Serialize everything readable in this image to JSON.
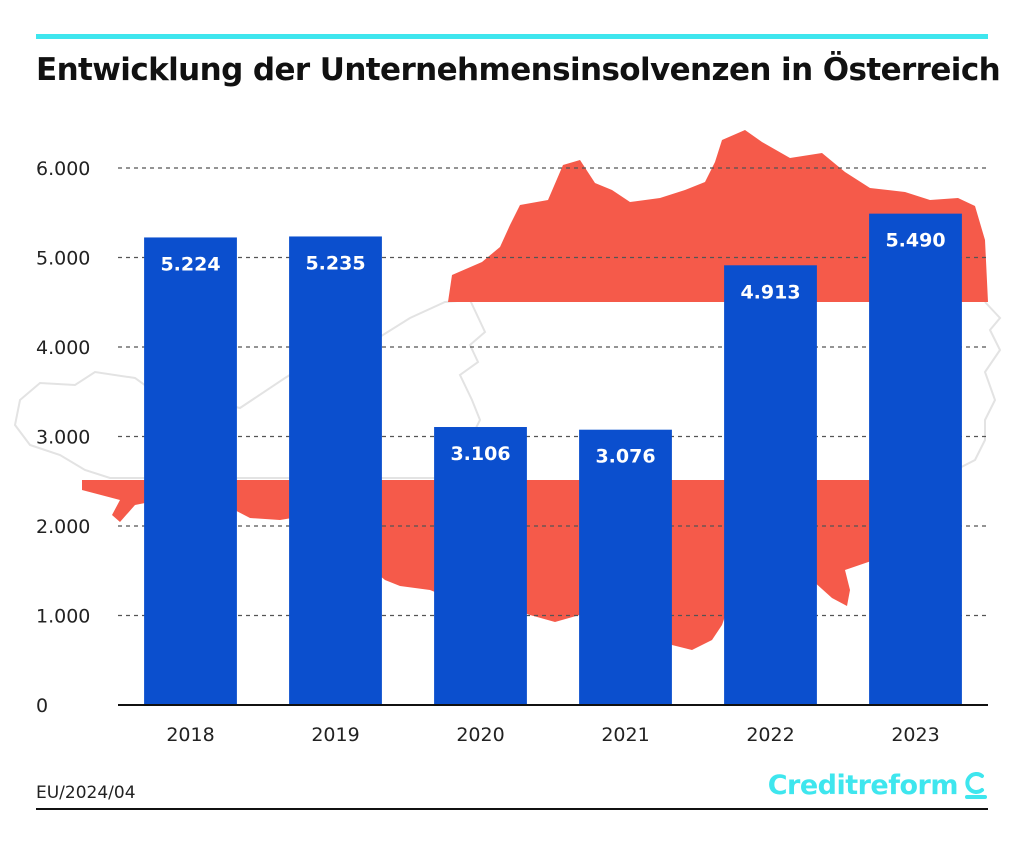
{
  "header": {
    "title": "Entwicklung der Unternehmensinsolvenzen in Österreich"
  },
  "chart_data": {
    "type": "bar",
    "title": "Entwicklung der Unternehmensinsolvenzen in Österreich",
    "xlabel": "",
    "ylabel": "",
    "categories": [
      "2018",
      "2019",
      "2020",
      "2021",
      "2022",
      "2023"
    ],
    "values": [
      5224,
      5235,
      3106,
      3076,
      4913,
      5490
    ],
    "value_labels": [
      "5.224",
      "5.235",
      "3.106",
      "3.076",
      "4.913",
      "5.490"
    ],
    "yticks": [
      0,
      1000,
      2000,
      3000,
      4000,
      5000,
      6000
    ],
    "ytick_labels": [
      "0",
      "1.000",
      "2.000",
      "3.000",
      "4.000",
      "5.000",
      "6.000"
    ],
    "ylim": [
      0,
      6000
    ],
    "grid": true,
    "legend": "none"
  },
  "colors": {
    "bar": "#0b4fce",
    "accent": "#3ee6ee",
    "flag_red": "#f55a4a",
    "grid": "#555555"
  },
  "footer": {
    "note": "EU/2024/04",
    "brand": "Creditreform"
  },
  "icons": {
    "brand_logo": "creditreform-c-logo-icon",
    "background": "austria-flag-map-icon"
  }
}
